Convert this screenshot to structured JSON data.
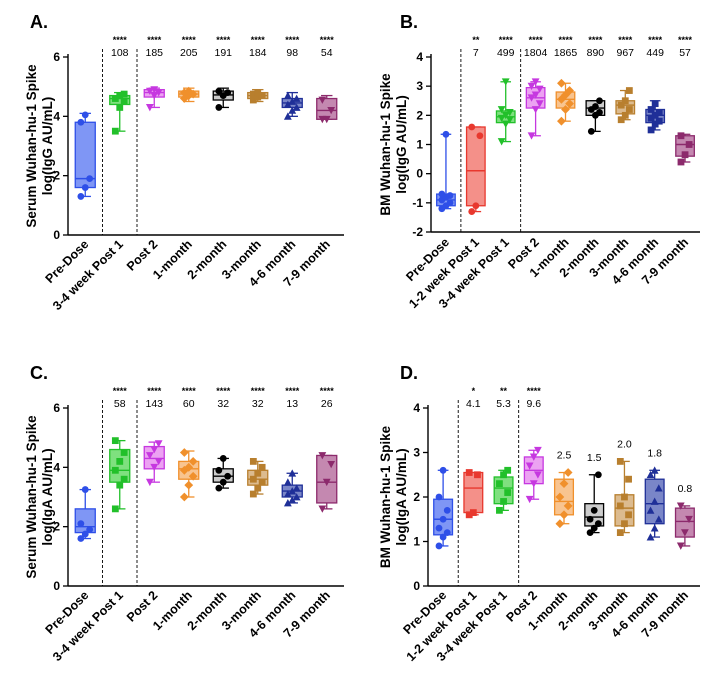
{
  "chart_data": [
    {
      "type": "box",
      "panel_label": "A.",
      "ylabel": [
        "Serum Wuhan-hu-1 Spike",
        "log(IgG AU/mL)"
      ],
      "ylim": [
        0,
        6
      ],
      "yticks": [
        "0",
        "2",
        "4",
        "6"
      ],
      "categories": [
        "Pre-Dose",
        "3-4 week Post 1",
        "Post 2",
        "1-month",
        "2-month",
        "3-month",
        "4-6 month",
        "7-9 month"
      ],
      "colors": [
        "#2e4fe8",
        "#22c02a",
        "#c638e0",
        "#f0902c",
        "#000000",
        "#b87f2e",
        "#1f2f98",
        "#8c2a6c"
      ],
      "fills": [
        "#7f96f5",
        "#7fe07f",
        "#eca2f2",
        "#f8c490",
        "#cccccc",
        "#dcbb8f",
        "#7a86c8",
        "#c488b0"
      ],
      "markers": [
        "circle",
        "square",
        "triangle-down",
        "diamond",
        "circle",
        "square",
        "triangle",
        "triangle-down"
      ],
      "boxes": [
        {
          "min": 1.3,
          "q1": 1.6,
          "median": 1.9,
          "q3": 3.8,
          "max": 4.1
        },
        {
          "min": 3.5,
          "q1": 4.4,
          "median": 4.6,
          "q3": 4.7,
          "max": 4.8
        },
        {
          "min": 4.3,
          "q1": 4.65,
          "median": 4.8,
          "q3": 4.9,
          "max": 4.95
        },
        {
          "min": 4.5,
          "q1": 4.65,
          "median": 4.75,
          "q3": 4.85,
          "max": 4.95
        },
        {
          "min": 4.3,
          "q1": 4.55,
          "median": 4.72,
          "q3": 4.85,
          "max": 4.95
        },
        {
          "min": 4.5,
          "q1": 4.6,
          "median": 4.7,
          "q3": 4.8,
          "max": 4.9
        },
        {
          "min": 4.0,
          "q1": 4.3,
          "median": 4.45,
          "q3": 4.6,
          "max": 4.8
        },
        {
          "min": 3.9,
          "q1": 3.9,
          "median": 4.2,
          "q3": 4.6,
          "max": 4.7
        }
      ],
      "points": [
        [
          1.3,
          1.6,
          1.9,
          3.8,
          4.05
        ],
        [
          3.5,
          4.3,
          4.5,
          4.6,
          4.7,
          4.75
        ],
        [
          4.3,
          4.7,
          4.8,
          4.85,
          4.9
        ],
        [
          4.6,
          4.7,
          4.75,
          4.8,
          4.85
        ],
        [
          4.3,
          4.7,
          4.8,
          4.85
        ],
        [
          4.55,
          4.65,
          4.7,
          4.75,
          4.8
        ],
        [
          4.0,
          4.2,
          4.3,
          4.4,
          4.5,
          4.6,
          4.7
        ],
        [
          3.9,
          3.9,
          4.2,
          4.55
        ]
      ],
      "significance": [
        "",
        "****",
        "****",
        "****",
        "****",
        "****",
        "****",
        "****"
      ],
      "annotations": [
        "",
        "108",
        "185",
        "205",
        "191",
        "184",
        "98",
        "54"
      ],
      "dividers_after": [
        0,
        1
      ]
    },
    {
      "type": "box",
      "panel_label": "B.",
      "ylabel": [
        "BM Wuhan-hu-1 Spike",
        "log(IgG AU/mL)"
      ],
      "ylim": [
        -2,
        4
      ],
      "yticks": [
        "-2",
        "-1",
        "0",
        "1",
        "2",
        "3",
        "4"
      ],
      "categories": [
        "Pre-Dose",
        "1-2 week Post 1",
        "3-4 week Post 1",
        "Post 2",
        "1-month",
        "2-month",
        "3-month",
        "4-6 month",
        "7-9 month"
      ],
      "colors": [
        "#2e4fe8",
        "#e8382e",
        "#22c02a",
        "#c638e0",
        "#f0902c",
        "#000000",
        "#b87f2e",
        "#1f2f98",
        "#8c2a6c"
      ],
      "fills": [
        "#7f96f5",
        "#f49089",
        "#7fe07f",
        "#eca2f2",
        "#f8c490",
        "#cccccc",
        "#dcbb8f",
        "#7a86c8",
        "#c488b0"
      ],
      "markers": [
        "circle",
        "circle",
        "triangle-down",
        "triangle-down",
        "diamond",
        "circle",
        "square",
        "square",
        "square"
      ],
      "boxes": [
        {
          "min": -1.2,
          "q1": -1.1,
          "median": -0.9,
          "q3": -0.7,
          "max": 1.35
        },
        {
          "min": -1.3,
          "q1": -1.1,
          "median": 0.1,
          "q3": 1.6,
          "max": 1.6
        },
        {
          "min": 1.1,
          "q1": 1.75,
          "median": 1.95,
          "q3": 2.15,
          "max": 3.15
        },
        {
          "min": 1.3,
          "q1": 2.25,
          "median": 2.6,
          "q3": 2.95,
          "max": 3.15
        },
        {
          "min": 1.8,
          "q1": 2.25,
          "median": 2.55,
          "q3": 2.8,
          "max": 3.1
        },
        {
          "min": 1.45,
          "q1": 2.0,
          "median": 2.25,
          "q3": 2.5,
          "max": 2.5
        },
        {
          "min": 1.85,
          "q1": 2.05,
          "median": 2.35,
          "q3": 2.5,
          "max": 2.85
        },
        {
          "min": 1.5,
          "q1": 1.75,
          "median": 2.0,
          "q3": 2.2,
          "max": 2.5
        },
        {
          "min": 0.4,
          "q1": 0.6,
          "median": 1.0,
          "q3": 1.3,
          "max": 1.35
        }
      ],
      "points": [
        [
          -1.2,
          -1.1,
          -1.0,
          -0.9,
          -0.8,
          -0.75,
          -0.7,
          1.35
        ],
        [
          -1.3,
          -1.1,
          1.3,
          1.6
        ],
        [
          1.1,
          1.7,
          1.85,
          1.9,
          2.0,
          2.1,
          2.2,
          3.15
        ],
        [
          1.3,
          2.2,
          2.4,
          2.6,
          2.7,
          2.9,
          3.0,
          3.15
        ],
        [
          1.8,
          2.2,
          2.4,
          2.55,
          2.7,
          2.85,
          3.1
        ],
        [
          1.45,
          2.0,
          2.1,
          2.2,
          2.3,
          2.5
        ],
        [
          1.85,
          2.0,
          2.2,
          2.35,
          2.5,
          2.85
        ],
        [
          1.5,
          1.7,
          1.8,
          1.9,
          2.0,
          2.1,
          2.2,
          2.4
        ],
        [
          0.4,
          0.65,
          1.0,
          1.3
        ]
      ],
      "significance": [
        "",
        "**",
        "****",
        "****",
        "****",
        "****",
        "****",
        "****",
        "****"
      ],
      "annotations": [
        "",
        "7",
        "499",
        "1804",
        "1865",
        "890",
        "967",
        "449",
        "57"
      ],
      "dividers_after": [
        0,
        2
      ]
    },
    {
      "type": "box",
      "panel_label": "C.",
      "ylabel": [
        "Serum Wuhan-hu-1 Spike",
        "log(IgA AU/mL)"
      ],
      "ylim": [
        0,
        6
      ],
      "yticks": [
        "0",
        "2",
        "4",
        "6"
      ],
      "categories": [
        "Pre-Dose",
        "3-4 week Post 1",
        "Post 2",
        "1-month",
        "2-month",
        "3-month",
        "4-6 month",
        "7-9 month"
      ],
      "colors": [
        "#2e4fe8",
        "#22c02a",
        "#c638e0",
        "#f0902c",
        "#000000",
        "#b87f2e",
        "#1f2f98",
        "#8c2a6c"
      ],
      "fills": [
        "#7f96f5",
        "#7fe07f",
        "#eca2f2",
        "#f8c490",
        "#cccccc",
        "#dcbb8f",
        "#7a86c8",
        "#c488b0"
      ],
      "markers": [
        "circle",
        "square",
        "triangle-down",
        "diamond",
        "circle",
        "square",
        "triangle",
        "triangle-down"
      ],
      "boxes": [
        {
          "min": 1.6,
          "q1": 1.8,
          "median": 2.0,
          "q3": 2.6,
          "max": 3.25
        },
        {
          "min": 2.6,
          "q1": 3.5,
          "median": 3.9,
          "q3": 4.6,
          "max": 4.9
        },
        {
          "min": 3.5,
          "q1": 3.95,
          "median": 4.3,
          "q3": 4.7,
          "max": 4.85
        },
        {
          "min": 3.0,
          "q1": 3.6,
          "median": 3.95,
          "q3": 4.2,
          "max": 4.55
        },
        {
          "min": 3.3,
          "q1": 3.5,
          "median": 3.7,
          "q3": 3.95,
          "max": 4.3
        },
        {
          "min": 3.1,
          "q1": 3.4,
          "median": 3.6,
          "q3": 3.9,
          "max": 4.2
        },
        {
          "min": 2.8,
          "q1": 3.0,
          "median": 3.2,
          "q3": 3.4,
          "max": 3.8
        },
        {
          "min": 2.6,
          "q1": 2.8,
          "median": 3.5,
          "q3": 4.4,
          "max": 4.4
        }
      ],
      "points": [
        [
          1.6,
          1.75,
          1.9,
          2.1,
          3.25
        ],
        [
          2.6,
          3.4,
          3.6,
          3.9,
          4.2,
          4.5,
          4.9
        ],
        [
          3.5,
          4.0,
          4.2,
          4.4,
          4.6,
          4.8
        ],
        [
          3.0,
          3.4,
          3.7,
          3.9,
          4.0,
          4.2,
          4.5
        ],
        [
          3.3,
          3.5,
          3.7,
          3.9,
          4.3
        ],
        [
          3.1,
          3.3,
          3.5,
          3.6,
          3.8,
          4.0,
          4.2
        ],
        [
          2.8,
          2.9,
          3.0,
          3.1,
          3.2,
          3.3,
          3.5,
          3.8
        ],
        [
          2.6,
          3.5,
          4.1,
          4.4
        ]
      ],
      "significance": [
        "",
        "****",
        "****",
        "****",
        "****",
        "****",
        "****",
        "****"
      ],
      "annotations": [
        "",
        "58",
        "143",
        "60",
        "32",
        "32",
        "13",
        "26"
      ],
      "dividers_after": [
        0,
        1
      ]
    },
    {
      "type": "box",
      "panel_label": "D.",
      "ylabel": [
        "BM Wuhan-hu-1 Spike",
        "log(IgA AU/mL)"
      ],
      "ylim": [
        0,
        4
      ],
      "yticks": [
        "0",
        "1",
        "2",
        "3",
        "4"
      ],
      "categories": [
        "Pre-Dose",
        "1-2 week Post 1",
        "3-4 week Post 1",
        "Post 2",
        "1-month",
        "2-month",
        "3-month",
        "4-6 month",
        "7-9 month"
      ],
      "colors": [
        "#2e4fe8",
        "#e8382e",
        "#22c02a",
        "#c638e0",
        "#f0902c",
        "#000000",
        "#b87f2e",
        "#1f2f98",
        "#8c2a6c"
      ],
      "fills": [
        "#7f96f5",
        "#f49089",
        "#7fe07f",
        "#eca2f2",
        "#f8c490",
        "#cccccc",
        "#dcbb8f",
        "#7a86c8",
        "#c488b0"
      ],
      "markers": [
        "circle",
        "square",
        "square",
        "triangle-down",
        "diamond",
        "circle",
        "square",
        "triangle",
        "triangle-down"
      ],
      "boxes": [
        {
          "min": 0.9,
          "q1": 1.15,
          "median": 1.5,
          "q3": 1.95,
          "max": 2.6
        },
        {
          "min": 1.6,
          "q1": 1.65,
          "median": 2.2,
          "q3": 2.55,
          "max": 2.55
        },
        {
          "min": 1.7,
          "q1": 1.85,
          "median": 2.2,
          "q3": 2.45,
          "max": 2.6
        },
        {
          "min": 1.95,
          "q1": 2.3,
          "median": 2.6,
          "q3": 2.9,
          "max": 3.05
        },
        {
          "min": 1.4,
          "q1": 1.6,
          "median": 1.9,
          "q3": 2.4,
          "max": 2.55
        },
        {
          "min": 1.2,
          "q1": 1.35,
          "median": 1.55,
          "q3": 1.85,
          "max": 2.5
        },
        {
          "min": 1.2,
          "q1": 1.35,
          "median": 1.75,
          "q3": 2.05,
          "max": 2.8
        },
        {
          "min": 1.1,
          "q1": 1.4,
          "median": 1.85,
          "q3": 2.4,
          "max": 2.6
        },
        {
          "min": 0.9,
          "q1": 1.1,
          "median": 1.45,
          "q3": 1.75,
          "max": 1.8
        }
      ],
      "points": [
        [
          0.9,
          1.1,
          1.2,
          1.3,
          1.5,
          1.7,
          2.0,
          2.6
        ],
        [
          1.6,
          1.65,
          2.5,
          2.55
        ],
        [
          1.7,
          1.9,
          2.1,
          2.3,
          2.5,
          2.6
        ],
        [
          1.95,
          2.3,
          2.5,
          2.7,
          2.9,
          3.05
        ],
        [
          1.4,
          1.6,
          1.8,
          2.0,
          2.3,
          2.55
        ],
        [
          1.2,
          1.3,
          1.4,
          1.5,
          1.7,
          2.5
        ],
        [
          1.2,
          1.4,
          1.6,
          1.8,
          2.0,
          2.4,
          2.8
        ],
        [
          1.1,
          1.3,
          1.5,
          1.7,
          1.9,
          2.2,
          2.5,
          2.6
        ],
        [
          0.9,
          1.2,
          1.5,
          1.8
        ]
      ],
      "significance": [
        "",
        "*",
        "**",
        "****",
        "",
        "",
        "",
        "",
        ""
      ],
      "annotations": [
        "",
        "4.1",
        "5.3",
        "9.6",
        "2.5",
        "1.5",
        "2.0",
        "1.8",
        "0.8"
      ],
      "dividers_after": [
        0,
        2
      ]
    }
  ]
}
